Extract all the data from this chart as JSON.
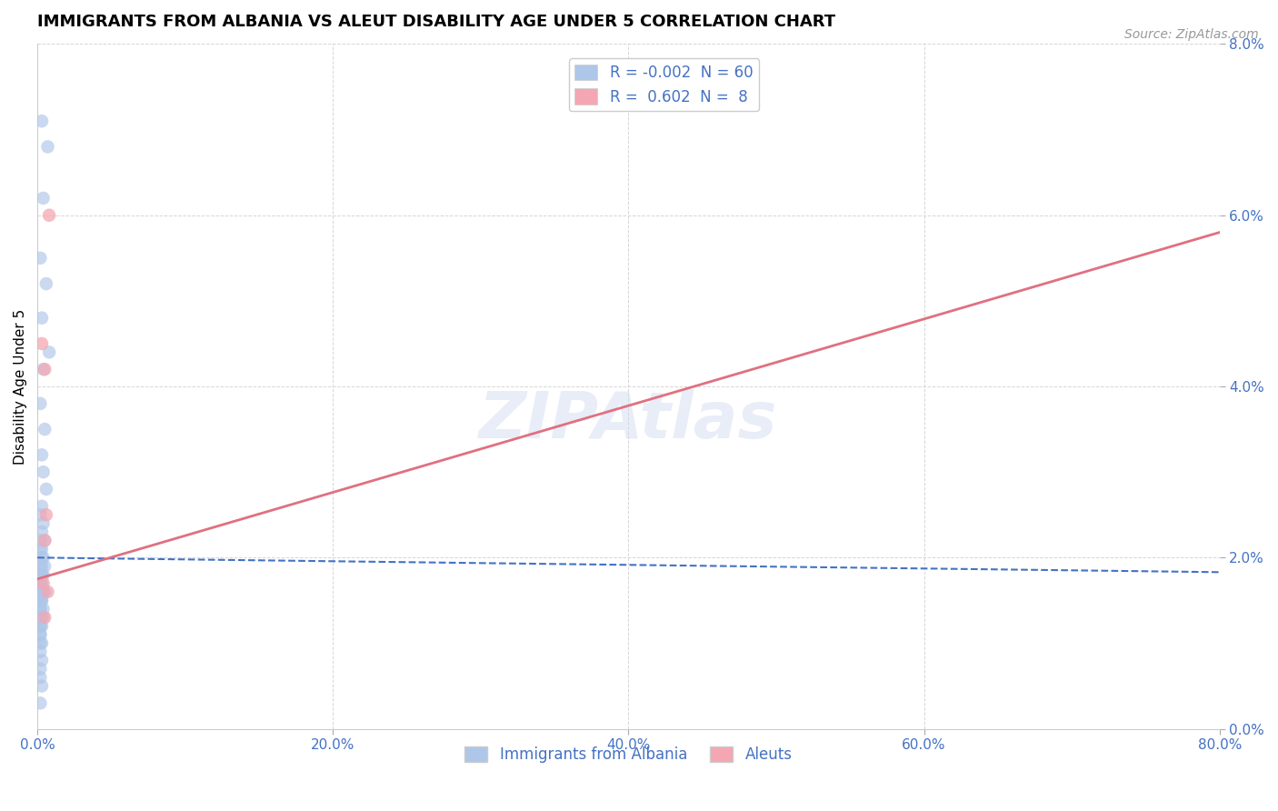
{
  "title": "IMMIGRANTS FROM ALBANIA VS ALEUT DISABILITY AGE UNDER 5 CORRELATION CHART",
  "source_text": "Source: ZipAtlas.com",
  "ylabel": "Disability Age Under 5",
  "xlabel_ticks": [
    "0.0%",
    "20.0%",
    "40.0%",
    "60.0%",
    "80.0%"
  ],
  "ylabel_ticks": [
    "0.0%",
    "2.0%",
    "4.0%",
    "6.0%",
    "8.0%"
  ],
  "xlim": [
    0.0,
    0.8
  ],
  "ylim": [
    0.0,
    0.08
  ],
  "legend_entries": [
    {
      "label": "R = -0.002  N = 60",
      "color": "#aec6e8"
    },
    {
      "label": "R =  0.602  N =  8",
      "color": "#f4a7b2"
    }
  ],
  "legend_labels_bottom": [
    "Immigrants from Albania",
    "Aleuts"
  ],
  "blue_scatter_x": [
    0.003,
    0.007,
    0.004,
    0.002,
    0.006,
    0.003,
    0.008,
    0.004,
    0.002,
    0.005,
    0.003,
    0.004,
    0.006,
    0.003,
    0.002,
    0.004,
    0.003,
    0.002,
    0.005,
    0.003,
    0.002,
    0.004,
    0.003,
    0.005,
    0.003,
    0.002,
    0.004,
    0.003,
    0.002,
    0.003,
    0.002,
    0.003,
    0.002,
    0.003,
    0.004,
    0.002,
    0.005,
    0.002,
    0.003,
    0.002,
    0.003,
    0.004,
    0.002,
    0.002,
    0.003,
    0.002,
    0.004,
    0.002,
    0.003,
    0.002,
    0.002,
    0.002,
    0.003,
    0.002,
    0.002,
    0.003,
    0.002,
    0.002,
    0.003,
    0.002
  ],
  "blue_scatter_y": [
    0.071,
    0.068,
    0.062,
    0.055,
    0.052,
    0.048,
    0.044,
    0.042,
    0.038,
    0.035,
    0.032,
    0.03,
    0.028,
    0.026,
    0.025,
    0.024,
    0.023,
    0.022,
    0.022,
    0.021,
    0.021,
    0.02,
    0.02,
    0.019,
    0.019,
    0.019,
    0.018,
    0.018,
    0.018,
    0.018,
    0.017,
    0.017,
    0.017,
    0.016,
    0.016,
    0.016,
    0.016,
    0.015,
    0.015,
    0.015,
    0.015,
    0.014,
    0.014,
    0.014,
    0.013,
    0.013,
    0.013,
    0.012,
    0.012,
    0.012,
    0.011,
    0.011,
    0.01,
    0.01,
    0.009,
    0.008,
    0.007,
    0.006,
    0.005,
    0.003
  ],
  "pink_scatter_x": [
    0.003,
    0.005,
    0.007,
    0.004,
    0.006,
    0.005,
    0.008,
    0.005
  ],
  "pink_scatter_y": [
    0.045,
    0.042,
    0.016,
    0.017,
    0.025,
    0.022,
    0.06,
    0.013
  ],
  "blue_line_x": [
    0.0,
    0.8
  ],
  "blue_line_y": [
    0.02,
    0.0183
  ],
  "pink_line_x": [
    0.0,
    0.8
  ],
  "pink_line_y": [
    0.0175,
    0.058
  ],
  "scatter_color_blue": "#aec6e8",
  "scatter_color_pink": "#f4a7b2",
  "line_color_blue": "#4472c4",
  "line_color_pink": "#e07080",
  "grid_color": "#cccccc",
  "background_color": "#ffffff",
  "title_fontsize": 13,
  "axis_label_fontsize": 11,
  "tick_fontsize": 11,
  "source_fontsize": 10,
  "legend_fontsize": 12
}
